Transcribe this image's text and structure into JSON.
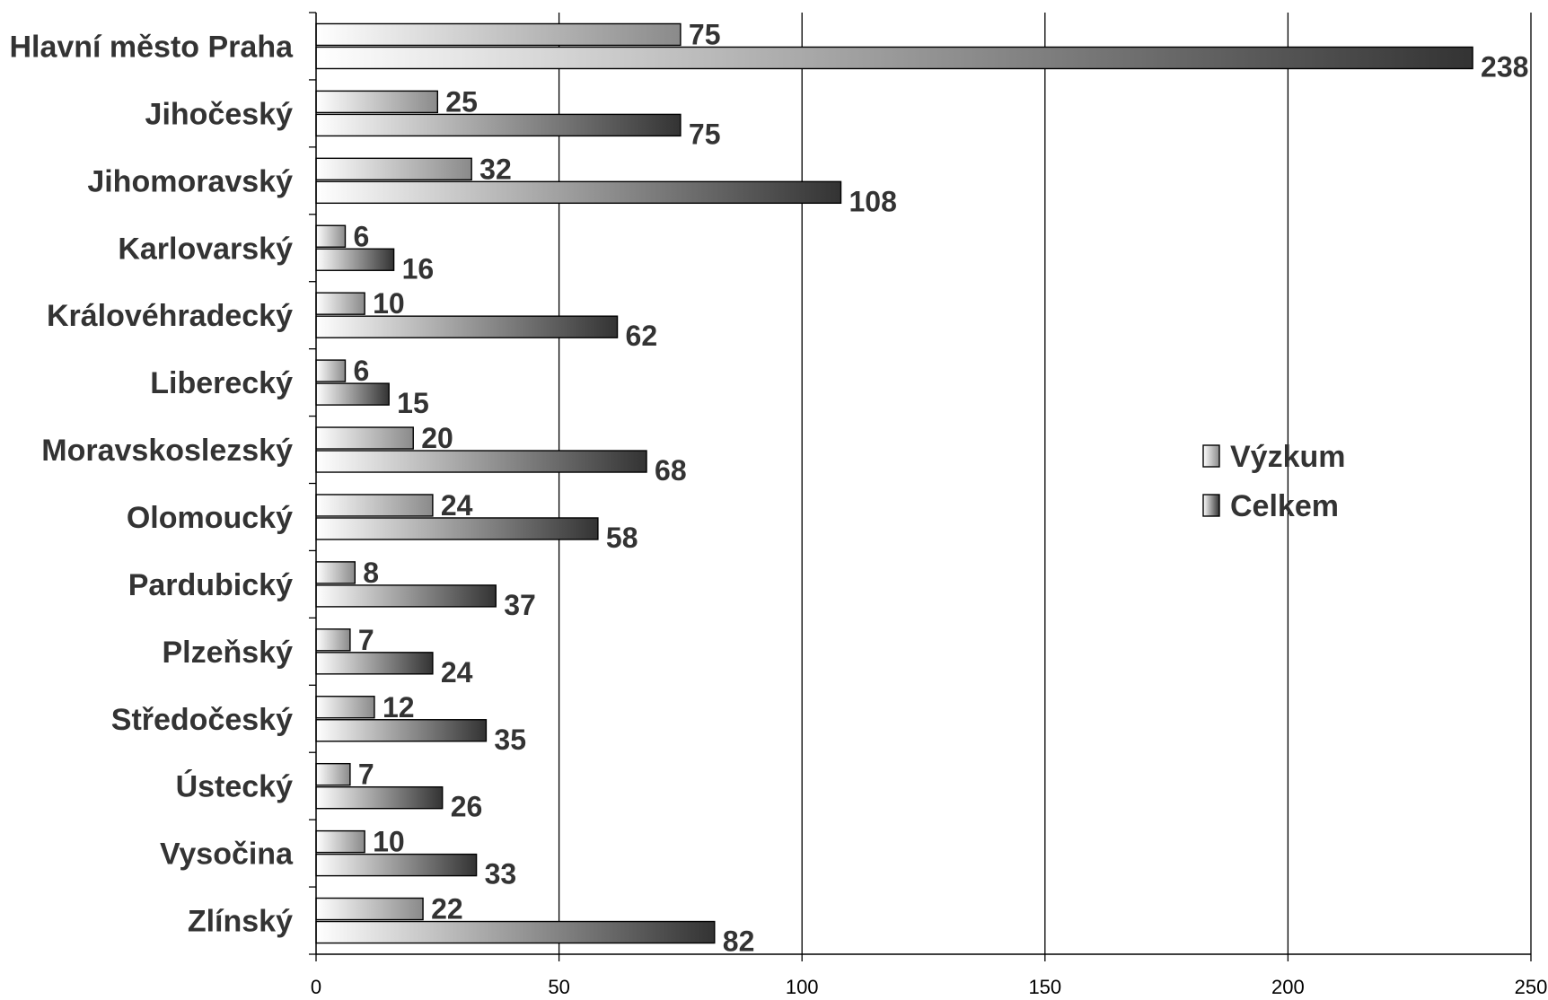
{
  "chart_data": {
    "type": "bar",
    "orientation": "horizontal",
    "title": "",
    "xlabel": "",
    "ylabel": "",
    "categories": [
      "Hlavní město Praha",
      "Jihočeský",
      "Jihomoravský",
      "Karlovarský",
      "Královéhradecký",
      "Liberecký",
      "Moravskoslezský",
      "Olomoucký",
      "Pardubický",
      "Plzeňský",
      "Středočeský",
      "Ústecký",
      "Vysočina",
      "Zlínský"
    ],
    "series": [
      {
        "name": "Výzkum",
        "values": [
          75,
          25,
          32,
          6,
          10,
          6,
          20,
          24,
          8,
          7,
          12,
          7,
          10,
          22
        ],
        "color_start": "#ffffff",
        "color_end": "#8a8a8a"
      },
      {
        "name": "Celkem",
        "values": [
          238,
          75,
          108,
          16,
          62,
          15,
          68,
          58,
          37,
          24,
          35,
          26,
          33,
          82
        ],
        "color_start": "#ffffff",
        "color_end": "#333333"
      }
    ],
    "xlim": [
      0,
      250
    ],
    "xticks": [
      0,
      50,
      100,
      150,
      200,
      250
    ],
    "grid": "vertical",
    "legend_position": "right",
    "data_labels": true
  }
}
